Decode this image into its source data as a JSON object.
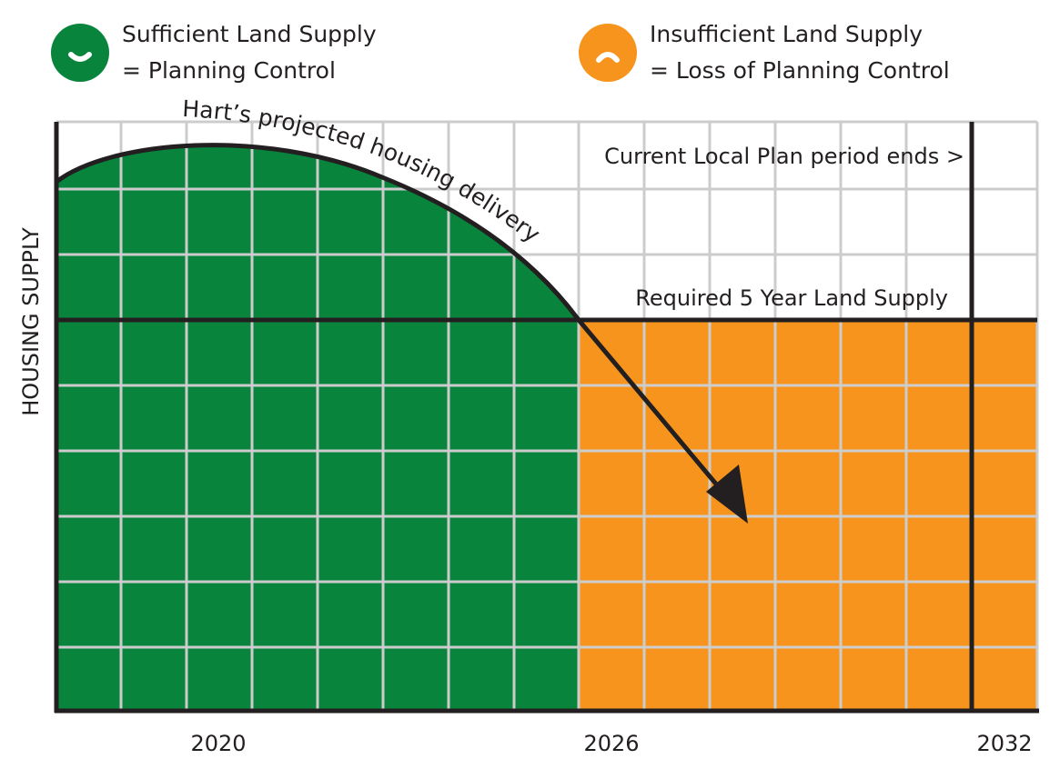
{
  "legend": {
    "sufficient": {
      "line1": "Sufficient Land Supply",
      "line2": "= Planning Control",
      "color": "#08843c",
      "icon": "smile-icon"
    },
    "insufficient": {
      "line1": "Insufficient Land Supply",
      "line2": "= Loss of Planning Control",
      "color": "#f7941d",
      "icon": "frown-icon"
    }
  },
  "chart": {
    "y_axis_label": "HOUSING SUPPLY",
    "curve_label": "Hart’s projected housing delivery",
    "threshold_label": "Required 5 Year Land Supply",
    "plan_end_label": "Current Local Plan period ends >",
    "x_ticks": [
      "2020",
      "2026",
      "2032"
    ],
    "colors": {
      "grid": "#cccccc",
      "axis": "#231f20"
    }
  }
}
